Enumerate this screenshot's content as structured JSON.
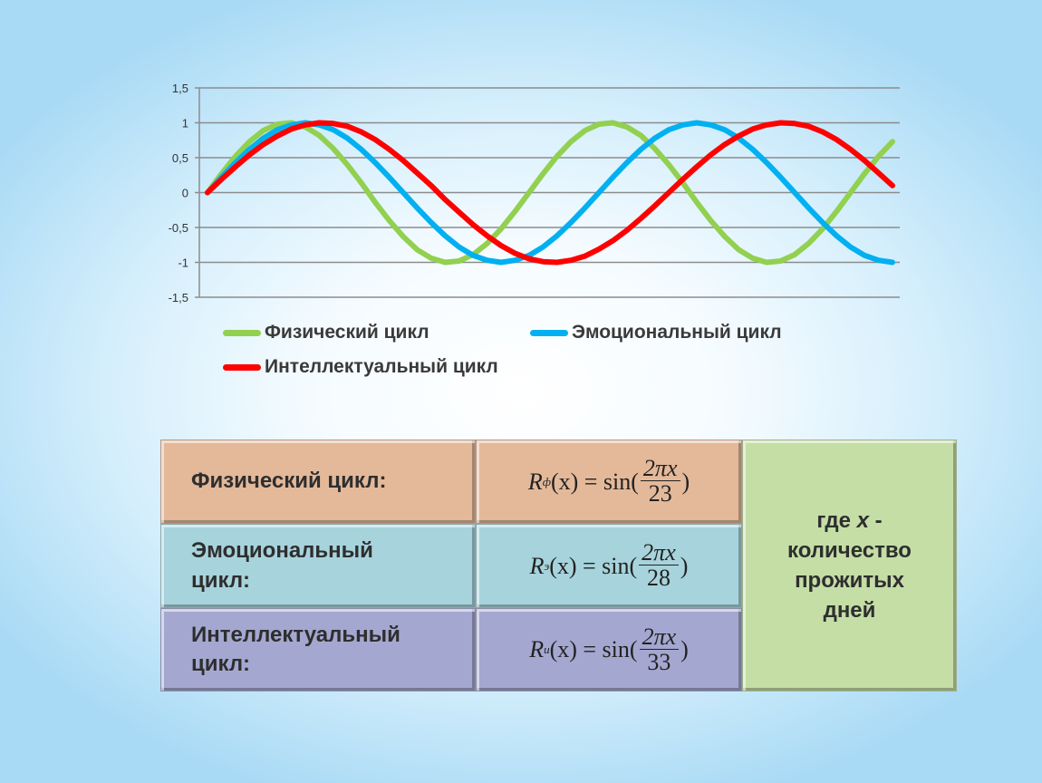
{
  "chart_data": {
    "type": "line",
    "x": [
      0,
      1,
      2,
      3,
      4,
      5,
      6,
      7,
      8,
      9,
      10,
      11,
      12,
      13,
      14,
      15,
      16,
      17,
      18,
      19,
      20,
      21,
      22,
      23,
      24,
      25,
      26,
      27,
      28,
      29,
      30,
      31,
      32,
      33,
      34,
      35,
      36,
      37,
      38,
      39,
      40,
      41,
      42,
      43,
      44,
      45,
      46,
      47,
      48,
      49
    ],
    "ylim": [
      -1.5,
      1.5
    ],
    "yticks": [
      "-1,5",
      "-1",
      "-0,5",
      "0",
      "0,5",
      "1",
      "1,5"
    ],
    "grid": true,
    "legend_position": "bottom",
    "series": [
      {
        "name": "Физический цикл",
        "color": "#92d050",
        "period": 23,
        "values": [
          0,
          0.27,
          0.52,
          0.73,
          0.89,
          0.98,
          1,
          0.94,
          0.82,
          0.63,
          0.4,
          0.14,
          -0.14,
          -0.4,
          -0.63,
          -0.82,
          -0.94,
          -1,
          -0.98,
          -0.89,
          -0.73,
          -0.52,
          -0.27,
          0,
          0.27,
          0.52,
          0.73,
          0.89,
          0.98,
          1,
          0.94,
          0.82,
          0.63,
          0.4,
          0.14,
          -0.14,
          -0.4,
          -0.63,
          -0.82,
          -0.94,
          -1,
          -0.98,
          -0.89,
          -0.73,
          -0.52,
          -0.27,
          0,
          0.27,
          0.52,
          0.73
        ]
      },
      {
        "name": "Эмоциональный цикл",
        "color": "#00b0f0",
        "period": 28,
        "values": [
          0,
          0.22,
          0.43,
          0.62,
          0.78,
          0.9,
          0.97,
          1,
          0.97,
          0.9,
          0.78,
          0.62,
          0.43,
          0.22,
          0,
          -0.22,
          -0.43,
          -0.62,
          -0.78,
          -0.9,
          -0.97,
          -1,
          -0.97,
          -0.9,
          -0.78,
          -0.62,
          -0.43,
          -0.22,
          0,
          0.22,
          0.43,
          0.62,
          0.78,
          0.9,
          0.97,
          1,
          0.97,
          0.9,
          0.78,
          0.62,
          0.43,
          0.22,
          0,
          -0.22,
          -0.43,
          -0.62,
          -0.78,
          -0.9,
          -0.97,
          -1
        ]
      },
      {
        "name": "Интеллектуальный цикл",
        "color": "#ff0000",
        "period": 33,
        "values": [
          0,
          0.19,
          0.37,
          0.54,
          0.69,
          0.81,
          0.91,
          0.97,
          1,
          0.99,
          0.95,
          0.87,
          0.76,
          0.62,
          0.46,
          0.28,
          0.1,
          -0.1,
          -0.28,
          -0.46,
          -0.62,
          -0.76,
          -0.87,
          -0.95,
          -0.99,
          -1,
          -0.97,
          -0.91,
          -0.81,
          -0.69,
          -0.54,
          -0.37,
          -0.19,
          0,
          0.19,
          0.37,
          0.54,
          0.69,
          0.81,
          0.91,
          0.97,
          1,
          0.99,
          0.95,
          0.87,
          0.76,
          0.62,
          0.46,
          0.28,
          0.1
        ]
      }
    ]
  },
  "table": {
    "rows": [
      {
        "label": "Физический цикл:",
        "color": "#e3b99a",
        "formula": {
          "R": "R",
          "sub": "ф",
          "lhs": "(x) = sin(",
          "num": "2πx",
          "den": "23",
          "close": ")"
        }
      },
      {
        "label": "Эмоциональный цикл:",
        "color": "#a7d3dc",
        "formula": {
          "R": "R",
          "sub": "э",
          "lhs": "(x) = sin(",
          "num": "2πx",
          "den": "28",
          "close": ")"
        }
      },
      {
        "label": "Интеллектуальный цикл:",
        "color": "#a4a8d0",
        "formula": {
          "R": "R",
          "sub": "и",
          "lhs": "(x) = sin(",
          "num": "2πx",
          "den": "33",
          "close": ")"
        }
      }
    ],
    "note": {
      "pre": "где ",
      "var": "x",
      "post": " - количество прожитых дней",
      "color": "#c4dea6"
    }
  }
}
